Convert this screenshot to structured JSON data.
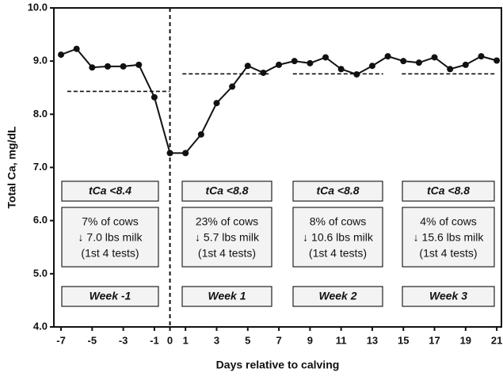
{
  "chart_data": {
    "type": "line",
    "x_label": "Days relative to calving",
    "y_label": "Total Ca, mg/dL",
    "x": [
      -7,
      -6,
      -5,
      -4,
      -3,
      -2,
      -1,
      0,
      1,
      2,
      3,
      4,
      5,
      6,
      7,
      8,
      9,
      10,
      11,
      12,
      13,
      14,
      15,
      16,
      17,
      18,
      19,
      20,
      21
    ],
    "series": [
      {
        "name": "Total Ca",
        "color": "#111111",
        "values": [
          9.12,
          9.23,
          8.88,
          8.9,
          8.9,
          8.93,
          8.32,
          7.27,
          7.27,
          7.62,
          8.21,
          8.52,
          8.91,
          8.78,
          8.93,
          9.0,
          8.96,
          9.07,
          8.85,
          8.75,
          8.91,
          9.09,
          9.0,
          8.97,
          9.07,
          8.85,
          8.93,
          9.09,
          9.01
        ]
      }
    ],
    "thresholds": [
      {
        "value": 8.43,
        "x": [
          -6.6,
          0
        ]
      },
      {
        "value": 8.76,
        "x": [
          0.8,
          6.5
        ]
      },
      {
        "value": 8.76,
        "x": [
          7.9,
          13.7
        ]
      },
      {
        "value": 8.76,
        "x": [
          14.9,
          20.9
        ]
      }
    ],
    "calving_line_x": 0,
    "xlim": [
      -7.46,
      21.3
    ],
    "ylim": [
      4,
      10
    ],
    "xticks": [
      -7,
      -5,
      -3,
      -1,
      0,
      1,
      3,
      5,
      7,
      9,
      11,
      13,
      15,
      17,
      19,
      21
    ],
    "yticks": [
      {
        "value": 4,
        "label": "4.0"
      },
      {
        "value": 5,
        "label": "5.0"
      },
      {
        "value": 6,
        "label": "6.0"
      },
      {
        "value": 7,
        "label": "7.0"
      },
      {
        "value": 8,
        "label": "8.0"
      },
      {
        "value": 9,
        "label": "9.0"
      },
      {
        "value": 10,
        "label": "10.0"
      }
    ],
    "boxes": [
      {
        "threshold": "tCa <8.4",
        "lines": [
          "7% of cows",
          "↓ 7.0 lbs milk",
          "(1st 4 tests)"
        ],
        "week": "Week -1"
      },
      {
        "threshold": "tCa <8.8",
        "lines": [
          "23% of cows",
          "↓ 5.7 lbs milk",
          "(1st 4 tests)"
        ],
        "week": "Week 1"
      },
      {
        "threshold": "tCa <8.8",
        "lines": [
          "8% of cows",
          "↓ 10.6 lbs milk",
          "(1st 4 tests)"
        ],
        "week": "Week 2"
      },
      {
        "threshold": "tCa <8.8",
        "lines": [
          "4% of cows",
          "↓ 15.6 lbs milk",
          "(1st 4 tests)"
        ],
        "week": "Week 3"
      }
    ]
  }
}
